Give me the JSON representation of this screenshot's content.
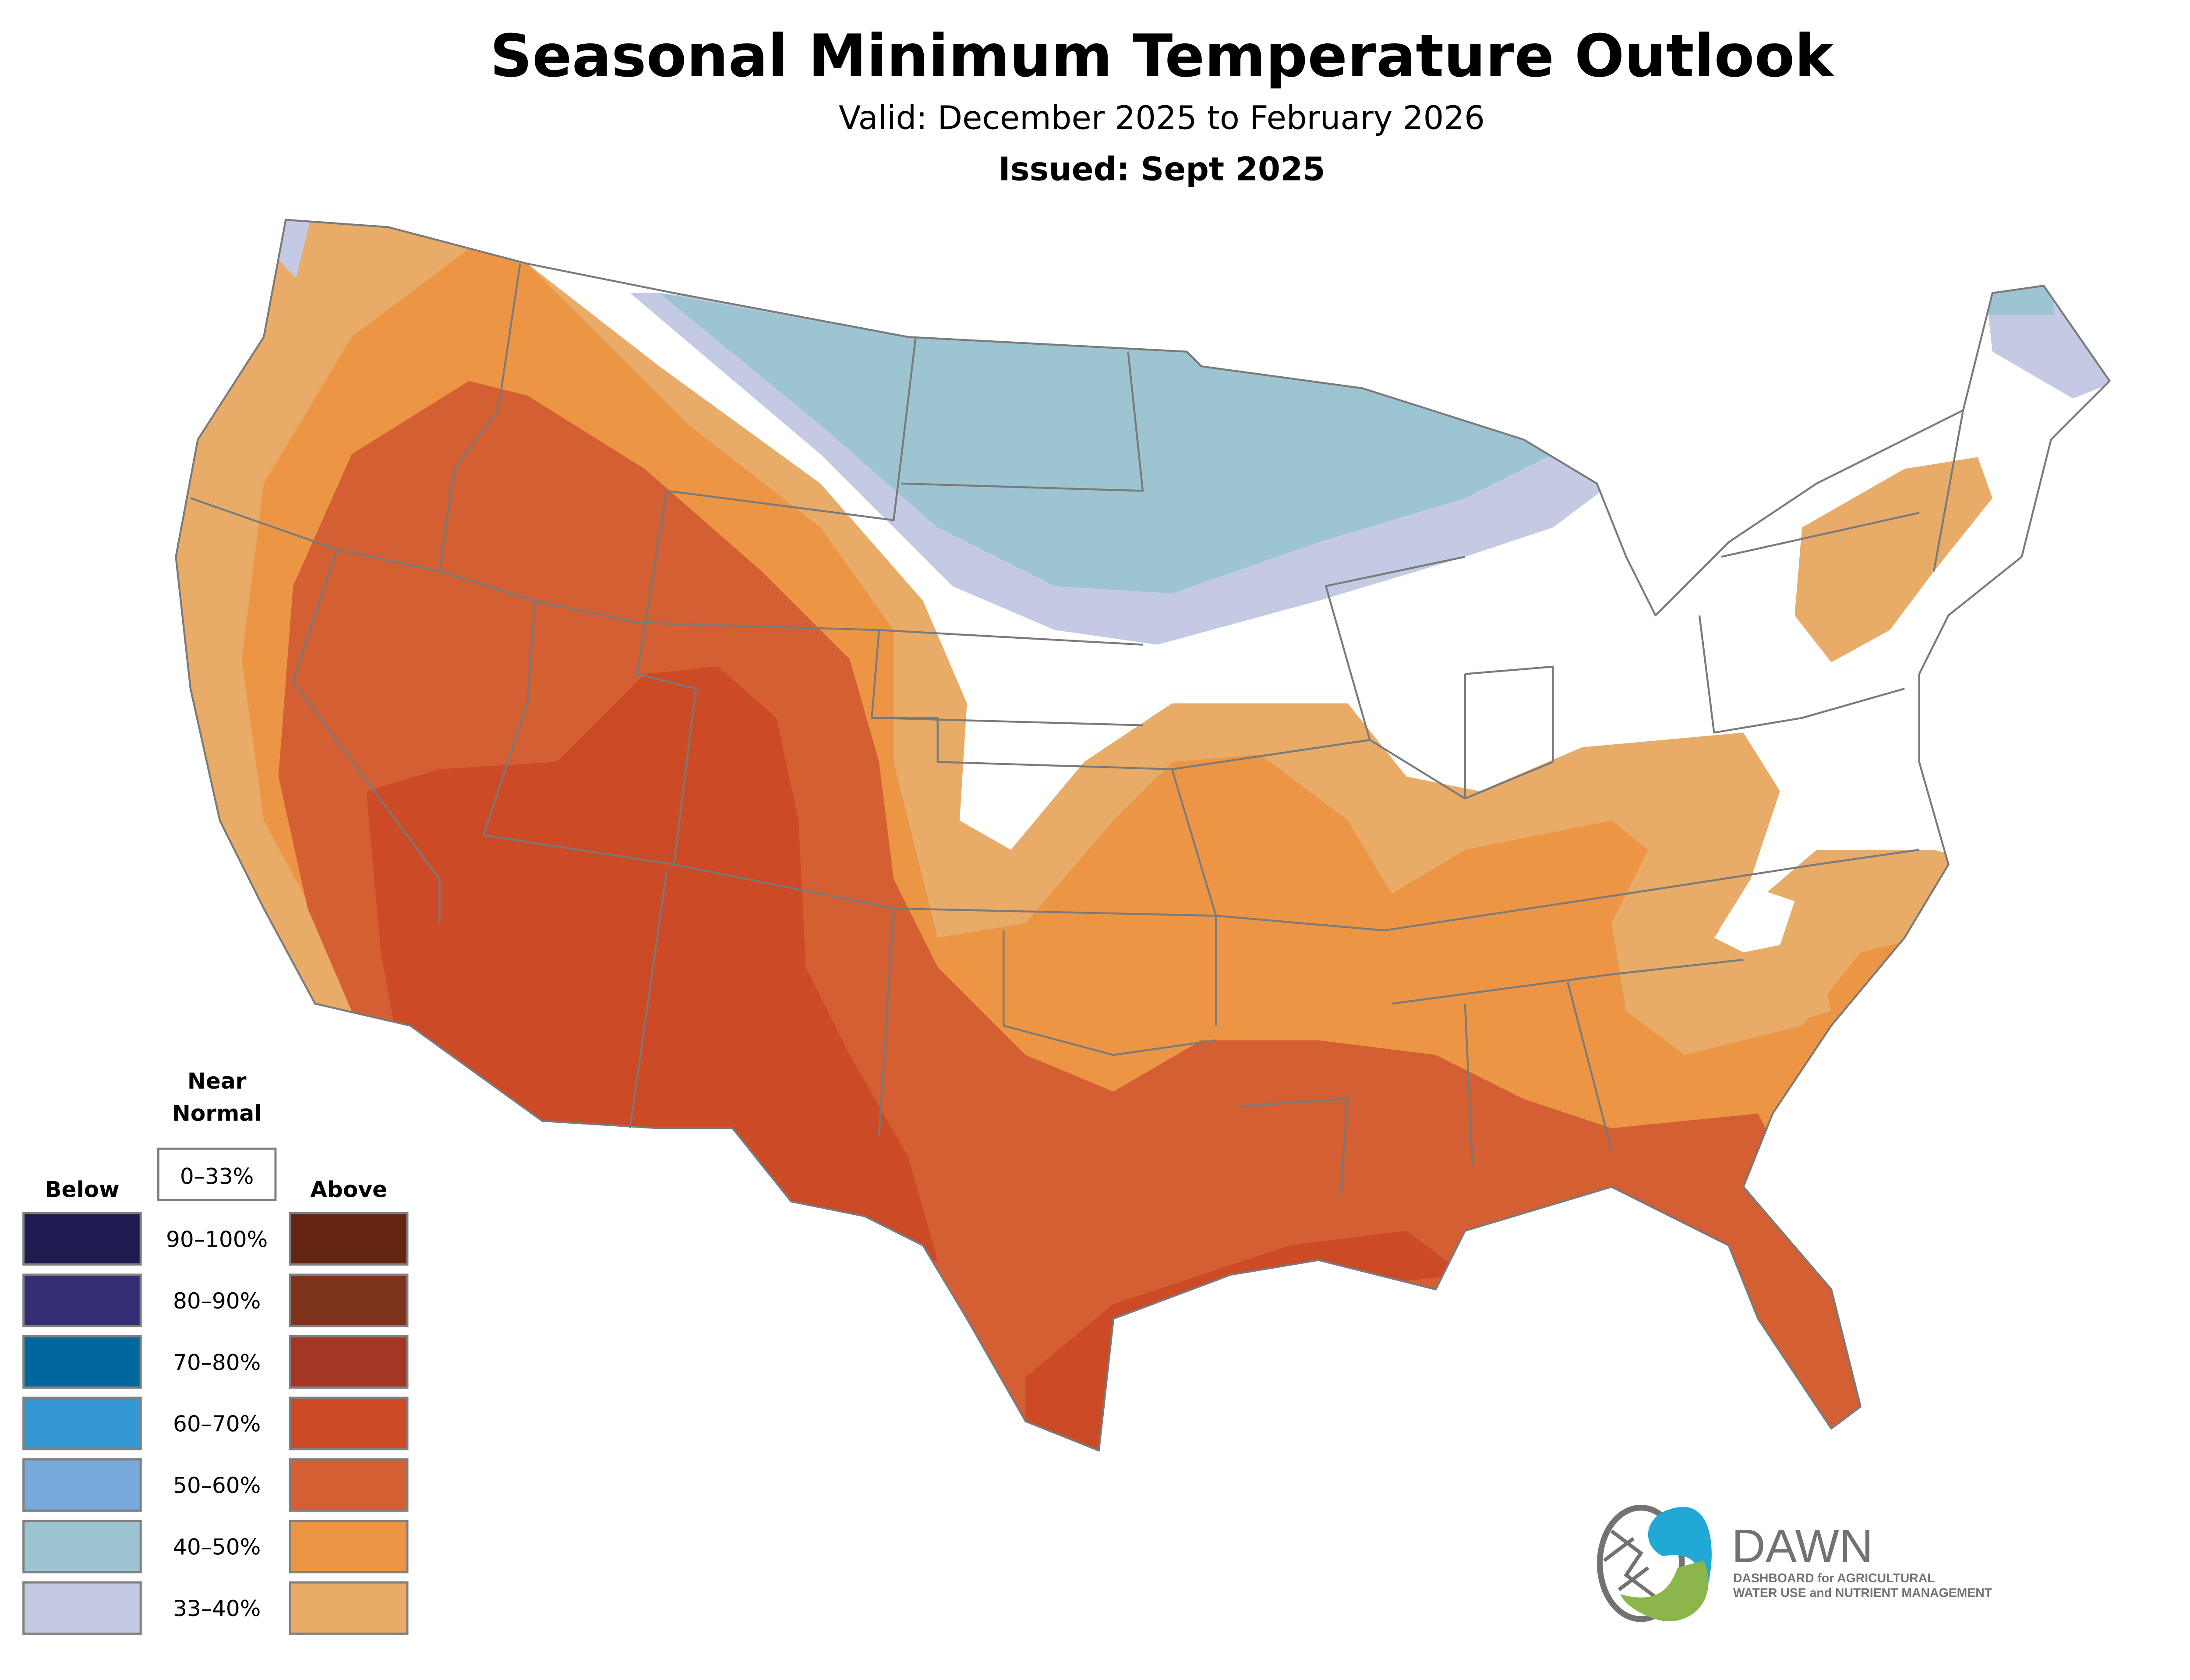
{
  "header": {
    "title": "Seasonal Minimum Temperature Outlook",
    "valid": "Valid: December 2025 to February 2026",
    "issued": "Issued: Sept 2025"
  },
  "legend": {
    "near_normal_line1": "Near",
    "near_normal_line2": "Normal",
    "near_normal_range": "0–33%",
    "below_label": "Below",
    "above_label": "Above",
    "rows": [
      {
        "range": "90–100%",
        "below_color": "#1F1A4F",
        "above_color": "#632411"
      },
      {
        "range": "80–90%",
        "below_color": "#342D74",
        "above_color": "#7E341C"
      },
      {
        "range": "70–80%",
        "below_color": "#00679D",
        "above_color": "#A53524"
      },
      {
        "range": "60–70%",
        "below_color": "#3398D4",
        "above_color": "#CC4A25"
      },
      {
        "range": "50–60%",
        "below_color": "#78A9DB",
        "above_color": "#D35F33"
      },
      {
        "range": "40–50%",
        "below_color": "#9DC5D1",
        "above_color": "#EC9645"
      },
      {
        "range": "33–40%",
        "below_color": "#C4CAE4",
        "above_color": "#E8AB68"
      }
    ]
  },
  "logo": {
    "name": "DAWN",
    "line1": "DASHBOARD for AGRICULTURAL",
    "line2": "WATER USE and NUTRIENT MANAGEMENT",
    "blue": "#21A8D4",
    "green": "#8CB64B",
    "gray": "#707372"
  }
}
